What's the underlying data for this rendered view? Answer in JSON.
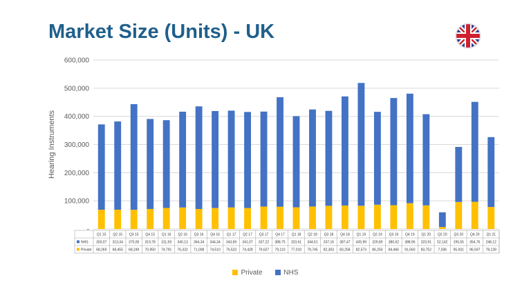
{
  "page_title": "Market Size (Units) - UK",
  "icons": {
    "flag": "uk-flag-icon"
  },
  "colors": {
    "nhs": "#4472c4",
    "private": "#ffc000",
    "title": "#1f5f8b"
  },
  "chart_data": {
    "type": "bar",
    "stacked": true,
    "ylabel": "Hearing Instruments",
    "ylim": [
      0,
      600000
    ],
    "yticks": [
      "-",
      "100,000",
      "200,000",
      "300,000",
      "400,000",
      "500,000",
      "600,000"
    ],
    "grid": true,
    "legend_position": "bottom",
    "categories": [
      "Q1 15",
      "Q2 15",
      "Q3 15",
      "Q4 15",
      "Q1 16",
      "Q2 16",
      "Q3 16",
      "Q4 16",
      "Q1 17",
      "Q2 17",
      "Q3 17",
      "Q4 17",
      "Q1 18",
      "Q2 18",
      "Q3 18",
      "Q4 18",
      "Q1 19",
      "Q2 19",
      "Q3 19",
      "Q4 19",
      "Q1 20",
      "Q2 20",
      "Q3 20",
      "Q4 20",
      "Q1 21"
    ],
    "series": [
      {
        "name": "Private",
        "values": [
          68269,
          68455,
          68249,
          70950,
          74791,
          76332,
          71008,
          74510,
          76523,
          74428,
          79627,
          79110,
          77010,
          79745,
          82303,
          83258,
          82573,
          86250,
          84466,
          91560,
          83752,
          7036,
          95931,
          96597,
          78139
        ],
        "labels": [
          "68,269",
          "68,455",
          "68,249",
          "70,950",
          "74,791",
          "76,332",
          "71,008",
          "74,510",
          "76,523",
          "74,428",
          "79,627",
          "79,110",
          "77,010",
          "79,745",
          "82,303",
          "83,258",
          "82,573",
          "86,250",
          "84,466",
          "91,560",
          "83,752",
          "7,036",
          "95,931",
          "96,597",
          "78,139"
        ]
      },
      {
        "name": "NHS",
        "values": [
          303070,
          313340,
          375000,
          319780,
          311590,
          340130,
          364340,
          344340,
          343690,
          341070,
          337220,
          388750,
          323610,
          344610,
          337160,
          387470,
          435990,
          329800,
          380620,
          388960,
          323910,
          52142,
          195550,
          354760,
          248120
        ],
        "labels": [
          "303,07",
          "313,34",
          "375,00",
          "319,78",
          "311,59",
          "340,13",
          "364,34",
          "344,34",
          "343,69",
          "341,07",
          "337,22",
          "388,75",
          "323,61",
          "344,61",
          "337,16",
          "387,47",
          "435,99",
          "329,80",
          "380,62",
          "388,96",
          "323,91",
          "52,142",
          "195,55",
          "354,76",
          "248,12"
        ]
      }
    ]
  }
}
